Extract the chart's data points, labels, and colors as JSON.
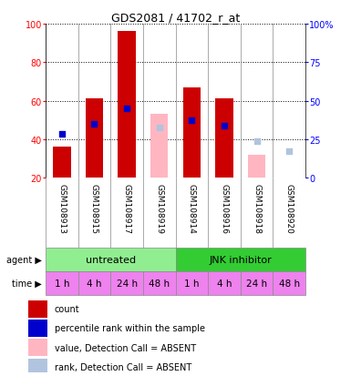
{
  "title": "GDS2081 / 41702_r_at",
  "samples": [
    "GSM108913",
    "GSM108915",
    "GSM108917",
    "GSM108919",
    "GSM108914",
    "GSM108916",
    "GSM108918",
    "GSM108920"
  ],
  "count_values": [
    36,
    61,
    96,
    null,
    67,
    61,
    null,
    null
  ],
  "count_absent": [
    null,
    null,
    null,
    53,
    null,
    null,
    32,
    null
  ],
  "rank_values": [
    43,
    48,
    56,
    null,
    50,
    47,
    null,
    null
  ],
  "rank_absent": [
    null,
    null,
    null,
    46,
    null,
    null,
    39,
    34
  ],
  "ylim_left": [
    20,
    100
  ],
  "ylim_right": [
    0,
    100
  ],
  "yticks_left": [
    20,
    40,
    60,
    80,
    100
  ],
  "yticks_right": [
    0,
    25,
    50,
    75,
    100
  ],
  "ytick_labels_right": [
    "0",
    "25",
    "50",
    "75",
    "100%"
  ],
  "ytick_labels_left": [
    "20",
    "40",
    "60",
    "80",
    "100"
  ],
  "agent_groups": [
    {
      "label": "untreated",
      "start": 0,
      "end": 4,
      "color": "#90EE90"
    },
    {
      "label": "JNK inhibitor",
      "start": 4,
      "end": 8,
      "color": "#33CC33"
    }
  ],
  "time_labels": [
    "1 h",
    "4 h",
    "24 h",
    "48 h",
    "1 h",
    "4 h",
    "24 h",
    "48 h"
  ],
  "time_color": "#EE82EE",
  "bar_width": 0.55,
  "count_color": "#CC0000",
  "rank_color": "#0000CC",
  "count_absent_color": "#FFB6C1",
  "rank_absent_color": "#B0C4DE",
  "legend_items": [
    {
      "color": "#CC0000",
      "label": "count"
    },
    {
      "color": "#0000CC",
      "label": "percentile rank within the sample"
    },
    {
      "color": "#FFB6C1",
      "label": "value, Detection Call = ABSENT"
    },
    {
      "color": "#B0C4DE",
      "label": "rank, Detection Call = ABSENT"
    }
  ],
  "background_color": "#FFFFFF",
  "label_panel_color": "#C8C8C8",
  "agent_label": "agent",
  "time_label": "time"
}
